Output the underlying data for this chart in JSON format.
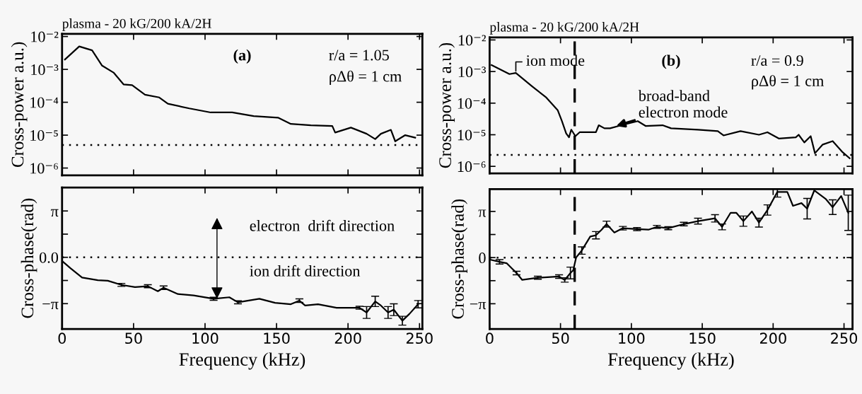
{
  "chart_data": [
    {
      "type": "line",
      "title": "plasma - 20 kG/200 kA/2H",
      "ylabel": "Cross-power a.u.)",
      "log": "y",
      "grid": false,
      "tick_labels": "y",
      "x": [
        2,
        12,
        21,
        28,
        36,
        43,
        49,
        58,
        68,
        74,
        89,
        104,
        119,
        134,
        151,
        160,
        174,
        189,
        191,
        202,
        213,
        219,
        223,
        230,
        233,
        240,
        247
      ],
      "series": [
        {
          "color": "#000000",
          "values": [
            0.002,
            0.005,
            0.0038,
            0.0013,
            0.0008,
            0.00035,
            0.00033,
            0.00017,
            0.00014,
            9e-05,
            6.5e-05,
            4.9e-05,
            4.9e-05,
            3.8e-05,
            3.4e-05,
            2.2e-05,
            2e-05,
            1.9e-05,
            1.2e-05,
            1.7e-05,
            1.1e-05,
            7.6e-06,
            1.1e-05,
            1.45e-05,
            6.5e-06,
            1e-05,
            8.4e-06
          ]
        }
      ],
      "xlim": [
        0,
        252
      ],
      "xticks": [
        0,
        50,
        100,
        150,
        200,
        250
      ],
      "ylim": [
        6e-07,
        0.012
      ],
      "yticks": [
        {
          "value": 0.01,
          "label": "10⁻²"
        },
        {
          "value": 0.001,
          "label": "10⁻³"
        },
        {
          "value": 0.0001,
          "label": "10⁻⁴"
        },
        {
          "value": 1e-05,
          "label": "10⁻⁵"
        },
        {
          "value": 1e-06,
          "label": "10⁻⁶"
        }
      ],
      "ref_lines": [
        {
          "axis": "y",
          "value": 5e-06,
          "color": "#000000",
          "line_style": "dotted"
        }
      ],
      "annotations": [
        "(a)",
        "r/a = 1.05",
        "ρΔθ = 1 cm"
      ]
    },
    {
      "type": "line",
      "xlabel": "Frequency (kHz)",
      "ylabel": "Cross-phase(rad)",
      "grid": false,
      "x": [
        0.4,
        6,
        14,
        25,
        32,
        41.5,
        51,
        60,
        67,
        71,
        81,
        92,
        106,
        117,
        123,
        138,
        149,
        160,
        166,
        170,
        179,
        192,
        208,
        213,
        219,
        223,
        228,
        232,
        238,
        243,
        249
      ],
      "series": [
        {
          "color": "#000000",
          "values": [
            -0.28,
            -0.75,
            -1.37,
            -1.55,
            -1.59,
            -1.87,
            -2.02,
            -1.96,
            -2.3,
            -2.06,
            -2.49,
            -2.58,
            -2.81,
            -2.71,
            -3.05,
            -2.81,
            -3.09,
            -3.18,
            -2.94,
            -3.27,
            -3.18,
            -3.42,
            -3.42,
            -3.74,
            -2.99,
            -3.27,
            -3.74,
            -3.55,
            -4.3,
            -3.83,
            -3.18
          ],
          "errors": [
            null,
            null,
            null,
            null,
            null,
            0.1,
            null,
            0.1,
            null,
            0.12,
            null,
            null,
            0.1,
            null,
            0.1,
            null,
            null,
            null,
            0.12,
            null,
            null,
            null,
            0.1,
            0.4,
            0.35,
            null,
            0.4,
            0.4,
            0.3,
            null,
            0.25
          ]
        }
      ],
      "xlim": [
        0,
        252
      ],
      "xticks": [
        0,
        50,
        100,
        150,
        200,
        250
      ],
      "ylim": [
        -4.86,
        4.73
      ],
      "yticks": [
        {
          "value": 3.1416,
          "label": "π"
        },
        {
          "value": 1.5708,
          "label": null
        },
        {
          "value": 0,
          "label": "0.0"
        },
        {
          "value": -1.5708,
          "label": null
        },
        {
          "value": -3.1416,
          "label": "−π"
        }
      ],
      "ref_lines": [
        {
          "axis": "y",
          "value": 0,
          "color": "#000000",
          "line_style": "dotted"
        }
      ],
      "annotations": [
        "electron  drift direction",
        "ion drift direction"
      ]
    },
    {
      "type": "line",
      "title": "plasma - 20 kG/200 kA/2H",
      "ylabel": "Cross-power a.u.)",
      "log": "y",
      "grid": false,
      "tick_labels": "y",
      "x": [
        1.4,
        14,
        18.5,
        30,
        40,
        48,
        51,
        54,
        56,
        57.6,
        60.5,
        63.5,
        75,
        77,
        81,
        85,
        93,
        104.5,
        110,
        122,
        128,
        147,
        161,
        165,
        177,
        190,
        196,
        204,
        216,
        218,
        222,
        226.5,
        229.5,
        235,
        242,
        249,
        254
      ],
      "series": [
        {
          "color": "#000000",
          "values": [
            0.0016,
            0.00083,
            0.0009,
            0.00034,
            0.00015,
            6e-05,
            2.7e-05,
            1.1e-05,
            8.3e-06,
            1.45e-05,
            9e-06,
            1.2e-05,
            1.2e-05,
            2e-05,
            1.6e-05,
            1.6e-05,
            2e-05,
            2.7e-05,
            1.9e-05,
            2e-05,
            1.6e-05,
            1.45e-05,
            1.3e-05,
            9.5e-06,
            1.3e-05,
            1e-05,
            1.2e-05,
            7.6e-06,
            8.3e-06,
            1e-05,
            5.7e-06,
            9e-06,
            2.6e-06,
            4.9e-06,
            6.3e-06,
            2.8e-06,
            1.8e-06
          ]
        }
      ],
      "xlim": [
        0,
        256
      ],
      "xticks": [
        0,
        50,
        100,
        150,
        200,
        250
      ],
      "ylim": [
        6e-07,
        0.012
      ],
      "yticks": [
        {
          "value": 0.01,
          "label": "10⁻²"
        },
        {
          "value": 0.001,
          "label": "10⁻³"
        },
        {
          "value": 0.0001,
          "label": "10⁻⁴"
        },
        {
          "value": 1e-05,
          "label": "10⁻⁵"
        },
        {
          "value": 1e-06,
          "label": "10⁻⁶"
        }
      ],
      "ref_lines": [
        {
          "axis": "y",
          "value": 2.3e-06,
          "color": "#000000",
          "line_style": "dotted"
        },
        {
          "axis": "x",
          "value": 60,
          "color": "#000000",
          "line_style": "dashed"
        }
      ],
      "annotations": [
        {
          "text": "ion mode",
          "x": 18.5,
          "y": 0.0009
        },
        "(b)",
        "r/a = 0.9",
        "ρΔθ = 1 cm",
        {
          "text": "broad-band\nelectron mode",
          "x": 84,
          "y": 1.6e-05
        }
      ]
    },
    {
      "type": "line",
      "xlabel": "Frequency (kHz)",
      "ylabel": "Cross-phase(rad)",
      "grid": false,
      "x": [
        0.8,
        7,
        12,
        19,
        23,
        34,
        49,
        53,
        57,
        59,
        61,
        65,
        71,
        75,
        79,
        82.5,
        88,
        94,
        104,
        112,
        118,
        126,
        137,
        147,
        159,
        164,
        170,
        174,
        179,
        185,
        190,
        196,
        203,
        210,
        214,
        220,
        224,
        229,
        237,
        242,
        248,
        253
      ],
      "series": [
        {
          "color": "#000000",
          "values": [
            -0.15,
            -0.29,
            -0.38,
            -1.05,
            -1.52,
            -1.37,
            -1.29,
            -1.52,
            -1.05,
            -0.86,
            0,
            0.48,
            1.43,
            1.52,
            1.9,
            2.28,
            1.71,
            2.0,
            1.94,
            1.9,
            2.09,
            2.0,
            2.28,
            2.48,
            2.67,
            2.09,
            3.05,
            3.05,
            2.48,
            3.14,
            2.38,
            3.24,
            4.47,
            4.47,
            3.52,
            3.71,
            3.33,
            4.57,
            4.0,
            3.43,
            4.19,
            3.05
          ],
          "errors": [
            null,
            0.15,
            null,
            0.12,
            null,
            0.1,
            0.12,
            0.15,
            0.4,
            null,
            null,
            0.25,
            null,
            0.25,
            null,
            0.2,
            null,
            0.12,
            0.1,
            null,
            0.1,
            0.1,
            0.12,
            0.2,
            0.25,
            0.2,
            null,
            null,
            0.35,
            null,
            0.3,
            0.35,
            0.35,
            null,
            null,
            null,
            0.7,
            null,
            null,
            0.5,
            null,
            1.2
          ]
        }
      ],
      "xlim": [
        0,
        256
      ],
      "xticks": [
        0,
        50,
        100,
        150,
        200,
        250
      ],
      "ylim": [
        -4.86,
        4.66
      ],
      "yticks": [
        {
          "value": 3.1416,
          "label": "π"
        },
        {
          "value": 1.5708,
          "label": null
        },
        {
          "value": 0,
          "label": "0"
        },
        {
          "value": -1.5708,
          "label": null
        },
        {
          "value": -3.1416,
          "label": "−π"
        }
      ],
      "ref_lines": [
        {
          "axis": "y",
          "value": 0,
          "color": "#000000",
          "line_style": "dotted"
        },
        {
          "axis": "x",
          "value": 60,
          "color": "#000000",
          "line_style": "dashed"
        }
      ]
    }
  ]
}
